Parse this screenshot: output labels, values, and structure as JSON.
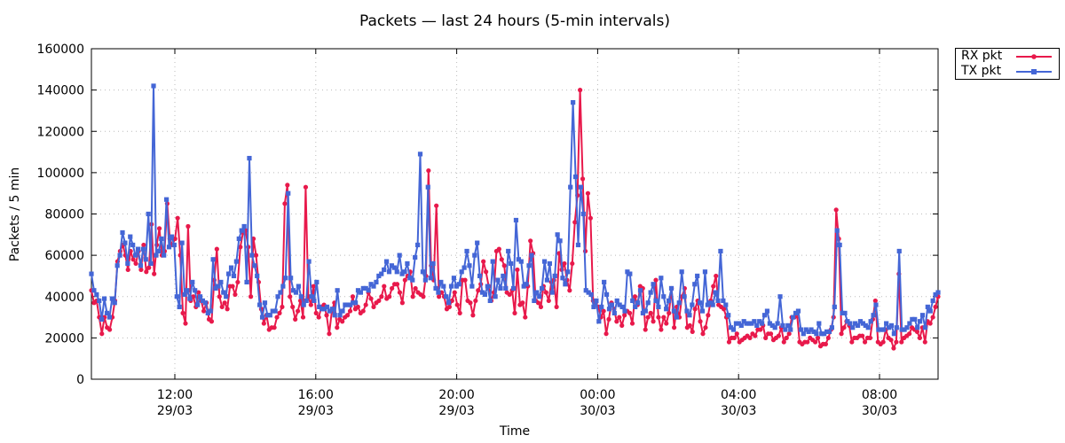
{
  "title": "Packets — last 24 hours (5-min intervals)",
  "xlabel": "Time",
  "ylabel": "Packets / 5 min",
  "legend": [
    {
      "label": "RX pkt",
      "color": "#e8194b",
      "marker": "circle"
    },
    {
      "label": "TX pkt",
      "color": "#4466d6",
      "marker": "square"
    }
  ],
  "chart_data": {
    "type": "line",
    "title": "Packets — last 24 hours (5-min intervals)",
    "xlabel": "Time",
    "ylabel": "Packets / 5 min",
    "ylim": [
      0,
      160000
    ],
    "yticks": [
      0,
      20000,
      40000,
      60000,
      80000,
      100000,
      120000,
      140000,
      160000
    ],
    "xticks": [
      {
        "label": "12:00",
        "sub": "29/03"
      },
      {
        "label": "16:00",
        "sub": "29/03"
      },
      {
        "label": "20:00",
        "sub": "29/03"
      },
      {
        "label": "00:00",
        "sub": "30/03"
      },
      {
        "label": "04:00",
        "sub": "30/03"
      },
      {
        "label": "08:00",
        "sub": "30/03"
      }
    ],
    "x_start": "29/03 09:40",
    "x_end": "30/03 09:40",
    "interval_minutes": 5,
    "grid": true,
    "legend_position": "outside top-right",
    "series": [
      {
        "name": "RX pkt",
        "color": "#e8194b",
        "values": [
          43000,
          37000,
          38000,
          30000,
          22000,
          30000,
          25000,
          24000,
          30000,
          38000,
          57000,
          62000,
          65000,
          60000,
          53000,
          62000,
          58000,
          56000,
          62000,
          53000,
          65000,
          52000,
          54000,
          75000,
          51000,
          65000,
          73000,
          60000,
          62000,
          85000,
          68000,
          65000,
          68000,
          78000,
          60000,
          32000,
          27000,
          74000,
          38000,
          40000,
          35000,
          42000,
          38000,
          33000,
          37000,
          29000,
          28000,
          48000,
          63000,
          40000,
          35000,
          37000,
          34000,
          45000,
          45000,
          41000,
          47000,
          64000,
          71000,
          72000,
          64000,
          40000,
          68000,
          60000,
          47000,
          34000,
          27000,
          31000,
          24000,
          25000,
          25000,
          30000,
          32000,
          35000,
          85000,
          94000,
          40000,
          35000,
          29000,
          33000,
          38000,
          30000,
          93000,
          40000,
          36000,
          45000,
          32000,
          30000,
          35000,
          36000,
          31000,
          22000,
          33000,
          37000,
          25000,
          29000,
          28000,
          30000,
          31000,
          33000,
          40000,
          34000,
          35000,
          32000,
          33000,
          36000,
          42000,
          39000,
          35000,
          37000,
          38000,
          40000,
          45000,
          39000,
          40000,
          44000,
          46000,
          46000,
          42000,
          37000,
          48000,
          50000,
          52000,
          40000,
          44000,
          42000,
          41000,
          40000,
          50000,
          101000,
          55000,
          48000,
          84000,
          40000,
          42000,
          40000,
          34000,
          35000,
          38000,
          42000,
          36000,
          32000,
          48000,
          48000,
          38000,
          37000,
          31000,
          38000,
          43000,
          46000,
          57000,
          52000,
          45000,
          38000,
          42000,
          62000,
          63000,
          58000,
          55000,
          42000,
          41000,
          43000,
          32000,
          53000,
          36000,
          37000,
          30000,
          45000,
          67000,
          61000,
          38000,
          37000,
          35000,
          45000,
          42000,
          38000,
          47000,
          48000,
          35000,
          61000,
          53000,
          56000,
          48000,
          43000,
          56000,
          76000,
          89000,
          140000,
          97000,
          62000,
          90000,
          78000,
          38000,
          37000,
          35000,
          30000,
          33000,
          22000,
          29000,
          37000,
          34000,
          28000,
          30000,
          26000,
          31000,
          33000,
          32000,
          27000,
          40000,
          36000,
          45000,
          44000,
          24000,
          30000,
          32000,
          28000,
          48000,
          30000,
          24000,
          30000,
          27000,
          32000,
          44000,
          25000,
          35000,
          30000,
          40000,
          44000,
          25000,
          26000,
          23000,
          34000,
          38000,
          28000,
          22000,
          25000,
          31000,
          38000,
          45000,
          50000,
          36000,
          35000,
          34000,
          30000,
          18000,
          20000,
          20000,
          22000,
          18000,
          19000,
          20000,
          21000,
          20000,
          22000,
          21000,
          24000,
          24000,
          26000,
          20000,
          22000,
          22000,
          19000,
          20000,
          21000,
          25000,
          18000,
          20000,
          22000,
          30000,
          30000,
          32000,
          18000,
          17000,
          18000,
          18000,
          20000,
          19000,
          18000,
          20000,
          16000,
          17000,
          17000,
          20000,
          24000,
          30000,
          82000,
          68000,
          22000,
          25000,
          28000,
          26000,
          18000,
          20000,
          20000,
          21000,
          21000,
          18000,
          20000,
          20000,
          29000,
          38000,
          18000,
          17000,
          18000,
          24000,
          20000,
          19000,
          15000,
          18000,
          51000,
          18000,
          20000,
          21000,
          22000,
          25000,
          24000,
          23000,
          20000,
          25000,
          18000,
          28000,
          27000,
          30000,
          35000,
          40000
        ]
      },
      {
        "name": "TX pkt",
        "color": "#4466d6",
        "values": [
          51000,
          43000,
          41000,
          38000,
          29000,
          39000,
          32000,
          30000,
          39000,
          37000,
          55000,
          60000,
          71000,
          66000,
          56000,
          69000,
          65000,
          60000,
          63000,
          55000,
          63000,
          58000,
          80000,
          56000,
          142000,
          60000,
          62000,
          68000,
          60000,
          87000,
          64000,
          69000,
          65000,
          40000,
          35000,
          66000,
          41000,
          43000,
          39000,
          47000,
          43000,
          36000,
          40000,
          38000,
          37000,
          32000,
          33000,
          58000,
          44000,
          45000,
          47000,
          42000,
          40000,
          51000,
          54000,
          50000,
          57000,
          68000,
          72000,
          74000,
          47000,
          107000,
          60000,
          55000,
          50000,
          36000,
          30000,
          37000,
          31000,
          31000,
          33000,
          33000,
          40000,
          42000,
          45000,
          49000,
          90000,
          49000,
          43000,
          42000,
          45000,
          40000,
          36000,
          38000,
          57000,
          40000,
          38000,
          47000,
          35000,
          34000,
          34000,
          35000,
          33000,
          34000,
          31000,
          43000,
          31000,
          33000,
          36000,
          36000,
          36000,
          37000,
          37000,
          43000,
          42000,
          44000,
          44000,
          43000,
          46000,
          45000,
          47000,
          50000,
          51000,
          53000,
          57000,
          52000,
          55000,
          54000,
          52000,
          60000,
          51000,
          52000,
          56000,
          49000,
          48000,
          59000,
          65000,
          109000,
          52000,
          48000,
          93000,
          49000,
          56000,
          44000,
          42000,
          47000,
          45000,
          40000,
          37000,
          45000,
          49000,
          45000,
          46000,
          52000,
          54000,
          62000,
          55000,
          45000,
          60000,
          66000,
          50000,
          42000,
          41000,
          45000,
          38000,
          57000,
          40000,
          48000,
          44000,
          50000,
          44000,
          62000,
          56000,
          44000,
          77000,
          58000,
          57000,
          45000,
          46000,
          55000,
          60000,
          38000,
          42000,
          40000,
          44000,
          57000,
          48000,
          56000,
          42000,
          50000,
          70000,
          67000,
          49000,
          46000,
          52000,
          93000,
          134000,
          98000,
          65000,
          93000,
          80000,
          43000,
          42000,
          41000,
          35000,
          38000,
          28000,
          35000,
          47000,
          41000,
          34000,
          36000,
          32000,
          38000,
          36000,
          35000,
          33000,
          52000,
          51000,
          38000,
          35000,
          37000,
          43000,
          32000,
          33000,
          37000,
          42000,
          46000,
          38000,
          35000,
          49000,
          40000,
          34000,
          38000,
          44000,
          33000,
          30000,
          37000,
          52000,
          40000,
          33000,
          31000,
          36000,
          46000,
          50000,
          37000,
          33000,
          52000,
          36000,
          37000,
          36000,
          42000,
          38000,
          62000,
          38000,
          36000,
          31000,
          25000,
          24000,
          27000,
          27000,
          26000,
          28000,
          27000,
          27000,
          27000,
          28000,
          26000,
          28000,
          27000,
          31000,
          33000,
          27000,
          26000,
          25000,
          27000,
          40000,
          26000,
          24000,
          26000,
          24000,
          30000,
          32000,
          33000,
          24000,
          22000,
          24000,
          23000,
          24000,
          23000,
          22000,
          27000,
          22000,
          22000,
          23000,
          23000,
          25000,
          35000,
          72000,
          65000,
          32000,
          32000,
          28000,
          27000,
          25000,
          27000,
          26000,
          28000,
          27000,
          26000,
          25000,
          28000,
          31000,
          36000,
          24000,
          24000,
          24000,
          27000,
          25000,
          26000,
          22000,
          25000,
          62000,
          24000,
          24000,
          25000,
          27000,
          29000,
          29000,
          25000,
          28000,
          31000,
          25000,
          35000,
          33000,
          38000,
          41000,
          42000
        ]
      }
    ]
  }
}
